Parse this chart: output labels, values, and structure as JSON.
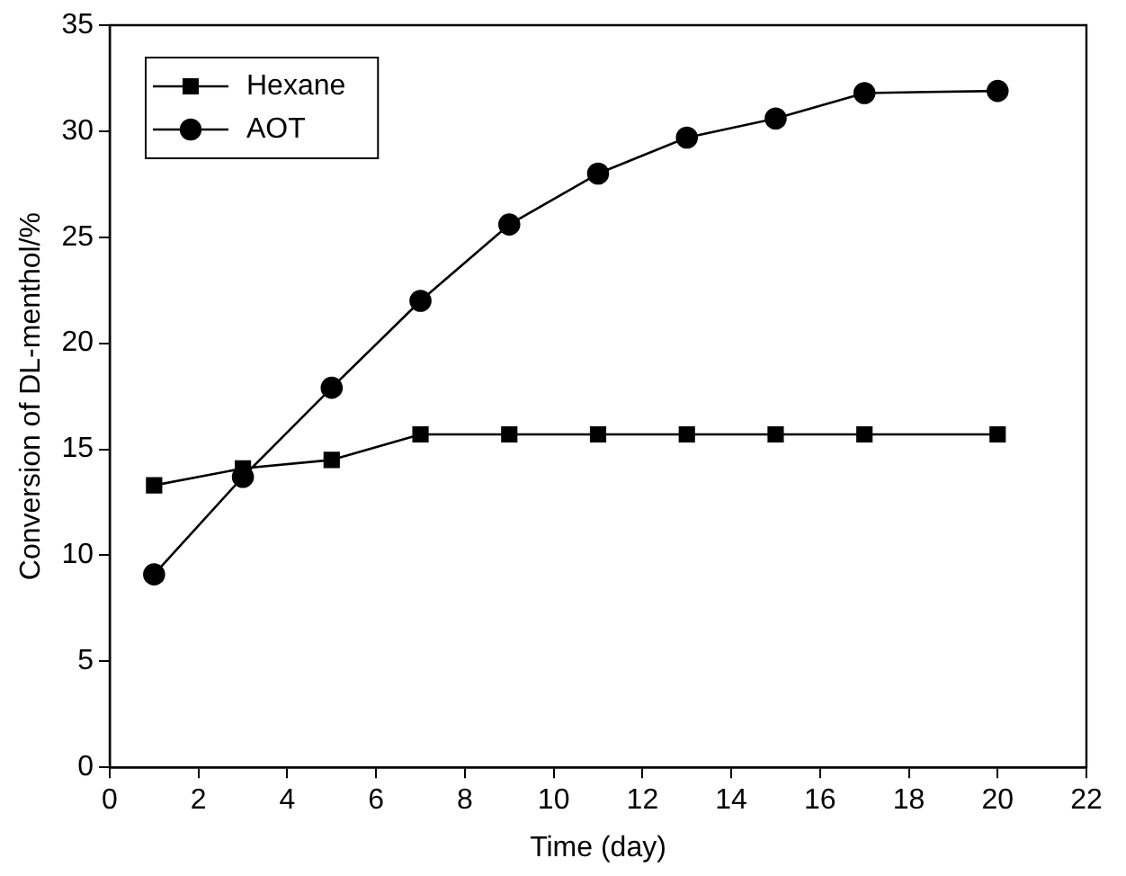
{
  "chart_data": {
    "type": "line",
    "xlabel": "Time (day)",
    "ylabel": "Conversion of DL-menthol/%",
    "x": [
      1,
      3,
      5,
      7,
      9,
      11,
      13,
      15,
      17,
      20
    ],
    "series": [
      {
        "name": "Hexane",
        "color": "#000000",
        "marker": "square",
        "values": [
          13.3,
          14.1,
          14.5,
          15.7,
          15.7,
          15.7,
          15.7,
          15.7,
          15.7,
          15.7
        ]
      },
      {
        "name": "AOT",
        "color": "#000000",
        "marker": "circle",
        "values": [
          9.1,
          13.7,
          17.9,
          22.0,
          25.6,
          28.0,
          29.7,
          30.6,
          31.8,
          31.9
        ]
      }
    ],
    "xlim": [
      0,
      22
    ],
    "xticks": [
      0,
      2,
      4,
      6,
      8,
      10,
      12,
      14,
      16,
      18,
      20,
      22
    ],
    "ylim": [
      0,
      35
    ],
    "yticks": [
      0,
      5,
      10,
      15,
      20,
      25,
      30,
      35
    ],
    "grid": false,
    "legend": "top left",
    "line_style": "solid"
  }
}
